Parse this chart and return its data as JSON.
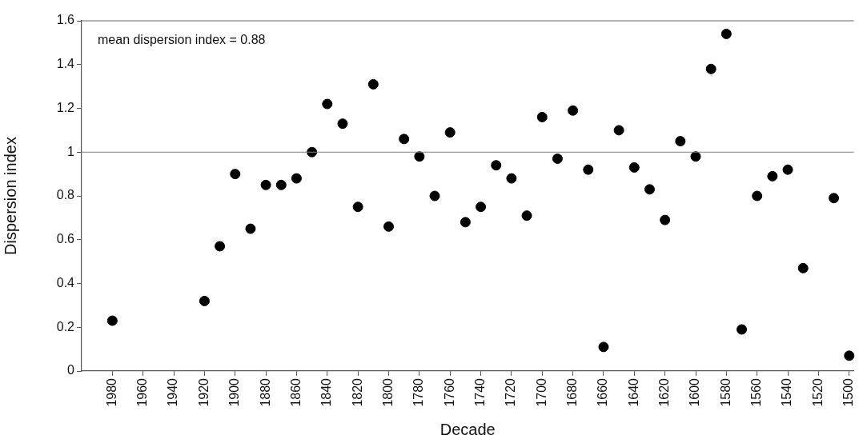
{
  "chart_data": {
    "type": "scatter",
    "xlabel": "Decade",
    "ylabel": "Dispersion index",
    "marker": "circle",
    "grid": false,
    "legend": false,
    "annotations": [
      "mean dispersion index = 0.88"
    ],
    "ref_lines": [
      {
        "axis": "y",
        "value": 1,
        "label": null,
        "color": "#808080"
      }
    ],
    "xlim": [
      2000,
      1497
    ],
    "xticks": [
      1980,
      1960,
      1940,
      1920,
      1900,
      1880,
      1860,
      1840,
      1820,
      1800,
      1780,
      1760,
      1740,
      1720,
      1700,
      1680,
      1660,
      1640,
      1620,
      1600,
      1580,
      1560,
      1540,
      1520,
      1500
    ],
    "ylim": [
      0,
      1.6
    ],
    "yticks": [
      0,
      0.2,
      0.4,
      0.6,
      0.8,
      1,
      1.2,
      1.4,
      1.6
    ],
    "series": [
      {
        "color": "#000000",
        "x": [
          1980,
          1920,
          1910,
          1900,
          1890,
          1880,
          1870,
          1860,
          1850,
          1840,
          1830,
          1820,
          1810,
          1800,
          1790,
          1780,
          1770,
          1760,
          1750,
          1740,
          1730,
          1720,
          1710,
          1700,
          1690,
          1680,
          1670,
          1660,
          1650,
          1640,
          1630,
          1620,
          1610,
          1600,
          1590,
          1580,
          1570,
          1560,
          1550,
          1540,
          1530,
          1510,
          1500
        ],
        "values": [
          0.23,
          0.32,
          0.57,
          0.9,
          0.65,
          0.85,
          0.85,
          0.88,
          1.0,
          1.22,
          1.13,
          0.75,
          1.31,
          0.66,
          1.06,
          0.98,
          0.8,
          1.09,
          0.68,
          0.75,
          0.94,
          0.88,
          0.71,
          1.16,
          0.97,
          1.19,
          0.92,
          0.11,
          1.1,
          0.93,
          0.83,
          0.69,
          1.05,
          0.98,
          1.38,
          1.54,
          0.19,
          0.8,
          0.89,
          0.92,
          0.47,
          0.79,
          0.07
        ]
      }
    ]
  }
}
